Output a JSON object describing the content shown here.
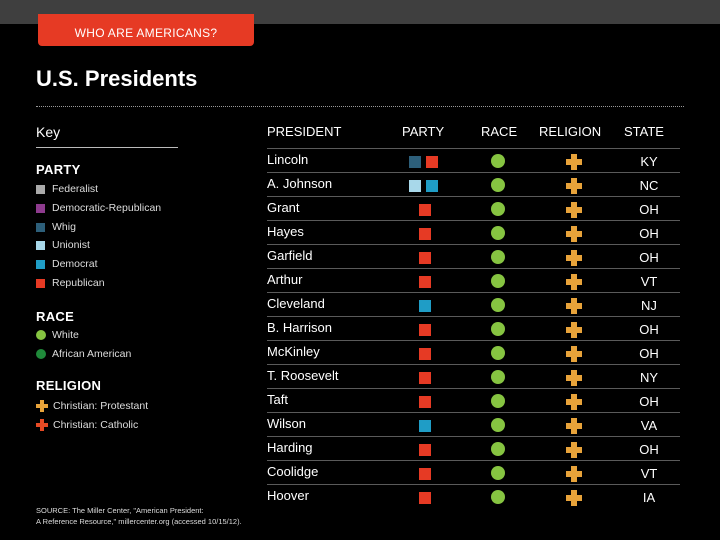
{
  "header": {
    "tag": "WHO ARE AMERICANS?",
    "title": "U.S. Presidents"
  },
  "colors": {
    "federalist": "#aaaaaa",
    "democratic_republican": "#8e3b8e",
    "whig": "#2d5f7a",
    "unionist": "#a8d8ea",
    "democrat": "#1f9dc6",
    "republican": "#e63a24",
    "white": "#86c441",
    "african_american": "#1f8a3a",
    "protestant": "#e8a33a",
    "catholic": "#e64a24"
  },
  "key": {
    "title": "Key",
    "party_title": "PARTY",
    "party": [
      {
        "label": "Federalist",
        "color": "#aaaaaa"
      },
      {
        "label": "Democratic-Republican",
        "color": "#8e3b8e"
      },
      {
        "label": "Whig",
        "color": "#2d5f7a"
      },
      {
        "label": "Unionist",
        "color": "#a8d8ea"
      },
      {
        "label": "Democrat",
        "color": "#1f9dc6"
      },
      {
        "label": "Republican",
        "color": "#e63a24"
      }
    ],
    "race_title": "RACE",
    "race": [
      {
        "label": "White",
        "color": "#86c441"
      },
      {
        "label": "African American",
        "color": "#1f8a3a"
      }
    ],
    "religion_title": "RELIGION",
    "religion": [
      {
        "label": "Christian: Protestant",
        "color": "#e8a33a"
      },
      {
        "label": "Christian: Catholic",
        "color": "#e64a24"
      }
    ]
  },
  "table": {
    "headers": {
      "president": "PRESIDENT",
      "party": "PARTY",
      "race": "RACE",
      "religion": "RELIGION",
      "state": "STATE"
    },
    "rows": [
      {
        "name": "Lincoln",
        "party": [
          "whig",
          "republican"
        ],
        "race": "white",
        "religion": "protestant",
        "state": "KY"
      },
      {
        "name": "A. Johnson",
        "party": [
          "unionist",
          "democrat"
        ],
        "race": "white",
        "religion": "protestant",
        "state": "NC"
      },
      {
        "name": "Grant",
        "party": [
          "republican"
        ],
        "race": "white",
        "religion": "protestant",
        "state": "OH"
      },
      {
        "name": "Hayes",
        "party": [
          "republican"
        ],
        "race": "white",
        "religion": "protestant",
        "state": "OH"
      },
      {
        "name": "Garfield",
        "party": [
          "republican"
        ],
        "race": "white",
        "religion": "protestant",
        "state": "OH"
      },
      {
        "name": "Arthur",
        "party": [
          "republican"
        ],
        "race": "white",
        "religion": "protestant",
        "state": "VT"
      },
      {
        "name": "Cleveland",
        "party": [
          "democrat"
        ],
        "race": "white",
        "religion": "protestant",
        "state": "NJ"
      },
      {
        "name": "B. Harrison",
        "party": [
          "republican"
        ],
        "race": "white",
        "religion": "protestant",
        "state": "OH"
      },
      {
        "name": "McKinley",
        "party": [
          "republican"
        ],
        "race": "white",
        "religion": "protestant",
        "state": "OH"
      },
      {
        "name": "T. Roosevelt",
        "party": [
          "republican"
        ],
        "race": "white",
        "religion": "protestant",
        "state": "NY"
      },
      {
        "name": "Taft",
        "party": [
          "republican"
        ],
        "race": "white",
        "religion": "protestant",
        "state": "OH"
      },
      {
        "name": "Wilson",
        "party": [
          "democrat"
        ],
        "race": "white",
        "religion": "protestant",
        "state": "VA"
      },
      {
        "name": "Harding",
        "party": [
          "republican"
        ],
        "race": "white",
        "religion": "protestant",
        "state": "OH"
      },
      {
        "name": "Coolidge",
        "party": [
          "republican"
        ],
        "race": "white",
        "religion": "protestant",
        "state": "VT"
      },
      {
        "name": "Hoover",
        "party": [
          "republican"
        ],
        "race": "white",
        "religion": "protestant",
        "state": "IA"
      }
    ]
  },
  "source": {
    "line1": "SOURCE: The Miller Center, \"American President:",
    "line2": "A Reference Resource,\" millercenter.org (accessed 10/15/12)."
  }
}
